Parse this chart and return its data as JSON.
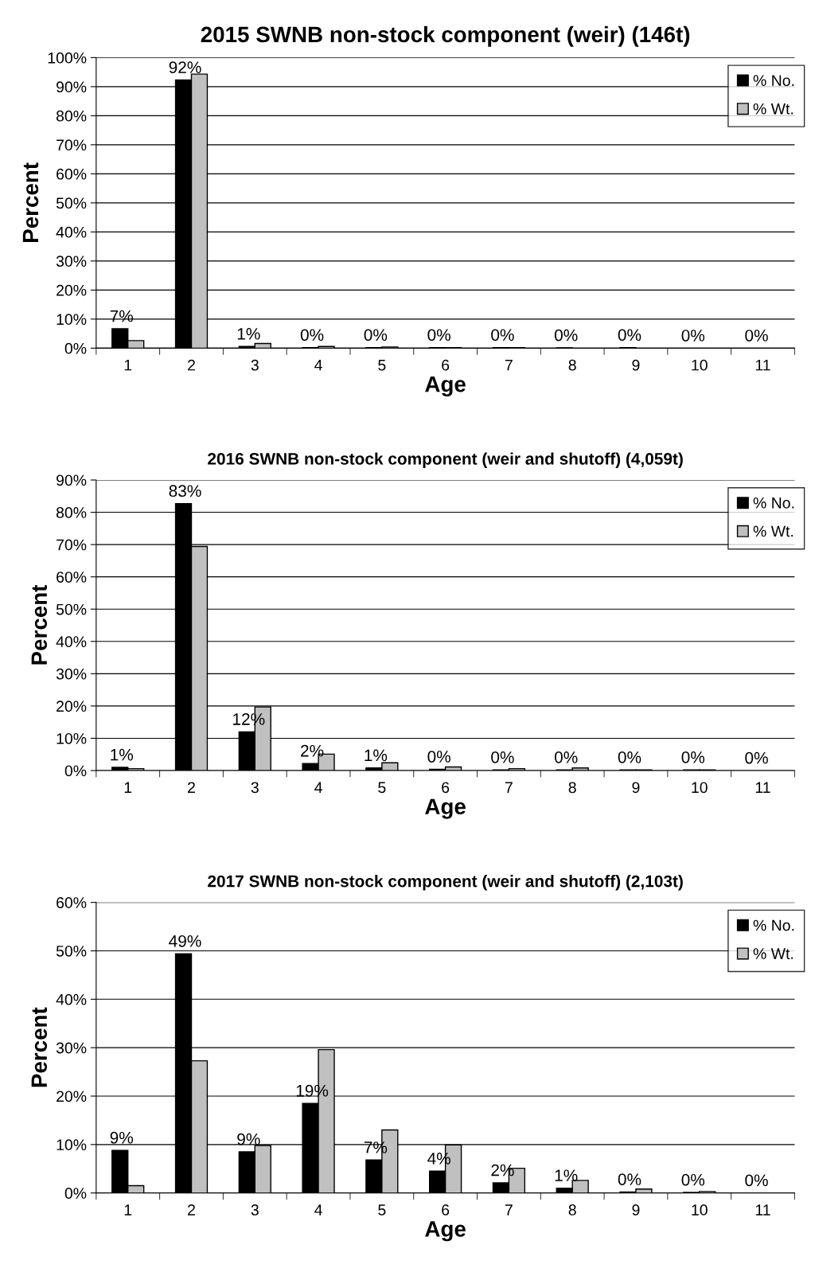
{
  "chart_data": [
    {
      "type": "bar",
      "title": "2015 SWNB non-stock component (weir) (146t)",
      "xlabel": "Age",
      "ylabel": "Percent",
      "categories": [
        "1",
        "2",
        "3",
        "4",
        "5",
        "6",
        "7",
        "8",
        "9",
        "10",
        "11"
      ],
      "series": [
        {
          "name": "% No.",
          "color": "#000000",
          "values": [
            6.7,
            92.3,
            0.6,
            0.2,
            0.2,
            0.2,
            0.2,
            0.1,
            0.2,
            0,
            0
          ],
          "value_labels": [
            "7%",
            "92%",
            "1%",
            "0%",
            "0%",
            "0%",
            "0%",
            "0%",
            "0%",
            "0%",
            "0%"
          ]
        },
        {
          "name": "% Wt.",
          "color": "#c0c0c0",
          "values": [
            2.6,
            94.3,
            1.6,
            0.6,
            0.4,
            0.2,
            0.2,
            0,
            0,
            0,
            0
          ]
        }
      ],
      "ylim": [
        0,
        100
      ],
      "yticks": [
        {
          "value": 0,
          "label": "0%"
        },
        {
          "value": 10,
          "label": "10%"
        },
        {
          "value": 20,
          "label": "20%"
        },
        {
          "value": 30,
          "label": "30%"
        },
        {
          "value": 40,
          "label": "40%"
        },
        {
          "value": 50,
          "label": "50%"
        },
        {
          "value": 60,
          "label": "60%"
        },
        {
          "value": 70,
          "label": "70%"
        },
        {
          "value": 80,
          "label": "80%"
        },
        {
          "value": 90,
          "label": "90%"
        },
        {
          "value": 100,
          "label": "100%"
        }
      ],
      "grid": "y",
      "legend": "top right"
    },
    {
      "type": "bar",
      "title": "2016 SWNB non-stock component (weir and shutoff) (4,059t)",
      "xlabel": "Age",
      "ylabel": "Percent",
      "categories": [
        "1",
        "2",
        "3",
        "4",
        "5",
        "6",
        "7",
        "8",
        "9",
        "10",
        "11"
      ],
      "series": [
        {
          "name": "% No.",
          "color": "#000000",
          "values": [
            1.0,
            82.7,
            12.0,
            2.2,
            0.8,
            0.4,
            0.2,
            0.2,
            0.2,
            0.2,
            0
          ],
          "value_labels": [
            "1%",
            "83%",
            "12%",
            "2%",
            "1%",
            "0%",
            "0%",
            "0%",
            "0%",
            "0%",
            "0%"
          ]
        },
        {
          "name": "% Wt.",
          "color": "#c0c0c0",
          "values": [
            0.6,
            69.4,
            19.7,
            5.1,
            2.4,
            1.1,
            0.6,
            0.8,
            0.2,
            0.2,
            0
          ]
        }
      ],
      "ylim": [
        0,
        90
      ],
      "yticks": [
        {
          "value": 0,
          "label": "0%"
        },
        {
          "value": 10,
          "label": "10%"
        },
        {
          "value": 20,
          "label": "20%"
        },
        {
          "value": 30,
          "label": "30%"
        },
        {
          "value": 40,
          "label": "40%"
        },
        {
          "value": 50,
          "label": "50%"
        },
        {
          "value": 60,
          "label": "60%"
        },
        {
          "value": 70,
          "label": "70%"
        },
        {
          "value": 80,
          "label": "80%"
        },
        {
          "value": 90,
          "label": "90%"
        }
      ],
      "grid": "y",
      "legend": "top right"
    },
    {
      "type": "bar",
      "title": "2017 SWNB non-stock component (weir and shutoff) (2,103t)",
      "xlabel": "Age",
      "ylabel": "Percent",
      "categories": [
        "1",
        "2",
        "3",
        "4",
        "5",
        "6",
        "7",
        "8",
        "9",
        "10",
        "11"
      ],
      "series": [
        {
          "name": "% No.",
          "color": "#000000",
          "values": [
            8.8,
            49.4,
            8.5,
            18.5,
            6.8,
            4.5,
            2.1,
            1.0,
            0.2,
            0.1,
            0
          ],
          "value_labels": [
            "9%",
            "49%",
            "9%",
            "19%",
            "7%",
            "4%",
            "2%",
            "1%",
            "0%",
            "0%",
            "0%"
          ]
        },
        {
          "name": "% Wt.",
          "color": "#c0c0c0",
          "values": [
            1.5,
            27.3,
            9.8,
            29.6,
            13.0,
            9.9,
            5.1,
            2.6,
            0.8,
            0.3,
            0
          ]
        }
      ],
      "ylim": [
        0,
        60
      ],
      "yticks": [
        {
          "value": 0,
          "label": "0%"
        },
        {
          "value": 10,
          "label": "10%"
        },
        {
          "value": 20,
          "label": "20%"
        },
        {
          "value": 30,
          "label": "30%"
        },
        {
          "value": 40,
          "label": "40%"
        },
        {
          "value": 50,
          "label": "50%"
        },
        {
          "value": 60,
          "label": "60%"
        }
      ],
      "grid": "y",
      "legend": "top right"
    }
  ]
}
